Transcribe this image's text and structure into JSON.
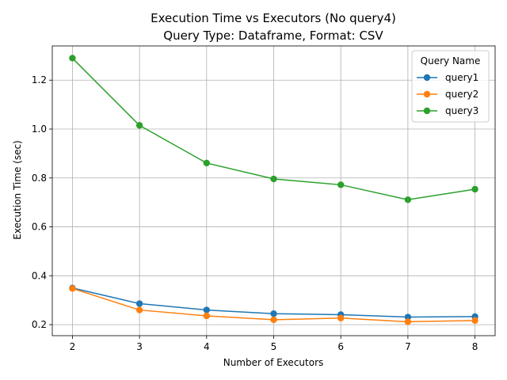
{
  "chart_data": {
    "type": "line",
    "title": "Execution Time vs Executors (No query4)",
    "subtitle": "Query Type: Dataframe, Format: CSV",
    "xlabel": "Number of Executors",
    "ylabel": "Execution Time (sec)",
    "x": [
      2,
      3,
      4,
      5,
      6,
      7,
      8
    ],
    "xlim": [
      1.7,
      8.3
    ],
    "ylim": [
      0.155,
      1.34
    ],
    "xticks": [
      "2",
      "3",
      "4",
      "5",
      "6",
      "7",
      "8"
    ],
    "yticks": [
      "0.2",
      "0.4",
      "0.6",
      "0.8",
      "1.0",
      "1.2"
    ],
    "grid": true,
    "legend": {
      "title": "Query Name",
      "placement": "top-right"
    },
    "series": [
      {
        "name": "query1",
        "color": "#1f77b4",
        "values": [
          0.35,
          0.286,
          0.26,
          0.245,
          0.241,
          0.231,
          0.233
        ]
      },
      {
        "name": "query2",
        "color": "#ff7f0e",
        "values": [
          0.348,
          0.26,
          0.236,
          0.22,
          0.227,
          0.212,
          0.217
        ]
      },
      {
        "name": "query3",
        "color": "#2ca02c",
        "values": [
          1.29,
          1.015,
          0.861,
          0.796,
          0.772,
          0.711,
          0.754
        ]
      }
    ]
  }
}
